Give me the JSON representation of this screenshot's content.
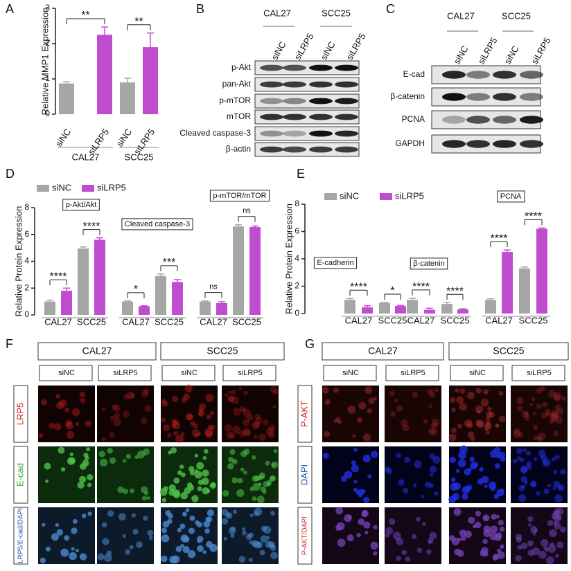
{
  "chart_data": [
    {
      "type": "bar",
      "panel": "A",
      "ylabel": "Relative MMP1 Expression",
      "categories": [
        "CAL27",
        "SCC25"
      ],
      "bar_labels": [
        [
          "siNC",
          "siLRP5"
        ],
        [
          "siNC",
          "siLRP5"
        ]
      ],
      "series": [
        {
          "color": "#a6a6a6",
          "values": [
            0.87,
            0.9
          ],
          "errors": [
            0.05,
            0.12
          ]
        },
        {
          "color": "#c04ccf",
          "values": [
            2.25,
            1.9
          ],
          "errors": [
            0.22,
            0.4
          ]
        }
      ],
      "significance": [
        "**",
        "**"
      ],
      "ylim": [
        0,
        3
      ],
      "yticks": [
        0,
        1,
        2,
        3
      ]
    },
    {
      "type": "bar",
      "panel": "D",
      "ylabel": "Relative Protein Expression",
      "groups": [
        "p-Akt/Akt",
        "Cleaved caspase-3",
        "p-mTOR/mTOR"
      ],
      "categories": [
        "CAL27",
        "SCC25",
        "CAL27",
        "SCC25",
        "CAL27",
        "SCC25"
      ],
      "series": [
        {
          "name": "siNC",
          "color": "#a6a6a6",
          "values": [
            1.0,
            4.95,
            1.0,
            2.9,
            1.0,
            6.6
          ],
          "errors": [
            0.1,
            0.12,
            0.04,
            0.15,
            0.05,
            0.12
          ]
        },
        {
          "name": "siLRP5",
          "color": "#c04ccf",
          "values": [
            1.8,
            5.6,
            0.65,
            2.45,
            0.88,
            6.55
          ],
          "errors": [
            0.2,
            0.15,
            0.03,
            0.18,
            0.1,
            0.08
          ]
        }
      ],
      "significance": [
        "****",
        "****",
        "*",
        "***",
        "ns",
        "ns"
      ],
      "ylim": [
        0,
        8
      ],
      "yticks": [
        0,
        2,
        4,
        6,
        8
      ]
    },
    {
      "type": "bar",
      "panel": "E",
      "ylabel": "Relative Protein Expression",
      "groups": [
        "E-cadherin",
        "β-catenin",
        "PCNA"
      ],
      "categories": [
        "CAL27",
        "SCC25",
        "CAL27",
        "SCC25",
        "CAL27",
        "SCC25"
      ],
      "series": [
        {
          "name": "siNC",
          "color": "#a6a6a6",
          "values": [
            1.0,
            0.78,
            1.0,
            0.7,
            1.0,
            3.3
          ],
          "errors": [
            0.1,
            0.03,
            0.12,
            0.1,
            0.08,
            0.1
          ]
        },
        {
          "name": "siLRP5",
          "color": "#c04ccf",
          "values": [
            0.45,
            0.55,
            0.27,
            0.3,
            4.5,
            6.2
          ],
          "errors": [
            0.12,
            0.04,
            0.12,
            0.05,
            0.15,
            0.06
          ]
        }
      ],
      "significance": [
        "****",
        "*",
        "****",
        "****",
        "****",
        "****"
      ],
      "ylim": [
        0,
        8
      ],
      "yticks": [
        0,
        2,
        4,
        6,
        8
      ]
    }
  ],
  "blots": [
    {
      "panel": "B",
      "groups": [
        "CAL27",
        "SCC25"
      ],
      "lanes": [
        "siNC",
        "siLRP5",
        "siNC",
        "siLRP5"
      ],
      "rows": [
        "p-Akt",
        "pan-Akt",
        "p-mTOR",
        "mTOR",
        "Cleaved caspase-3",
        "β-actin"
      ]
    },
    {
      "panel": "C",
      "groups": [
        "CAL27",
        "SCC25"
      ],
      "lanes": [
        "siNC",
        "siLRP5",
        "siNC",
        "siLRP5"
      ],
      "rows": [
        "E-cad",
        "β-catenin",
        "PCNA",
        "GAPDH"
      ]
    }
  ],
  "micrographs": [
    {
      "panel": "F",
      "groups": [
        "CAL27",
        "SCC25"
      ],
      "conditions": [
        "siNC",
        "siLRP5",
        "siNC",
        "siLRP5"
      ],
      "rows": [
        "LRP5",
        "E-cad",
        "LRP5/E-cad/DAPI"
      ]
    },
    {
      "panel": "G",
      "groups": [
        "CAL27",
        "SCC25"
      ],
      "conditions": [
        "siNC",
        "siLRP5",
        "siNC",
        "siLRP5"
      ],
      "rows": [
        "P-AKT",
        "DAPI",
        "P-AKT/DAPI"
      ]
    }
  ]
}
